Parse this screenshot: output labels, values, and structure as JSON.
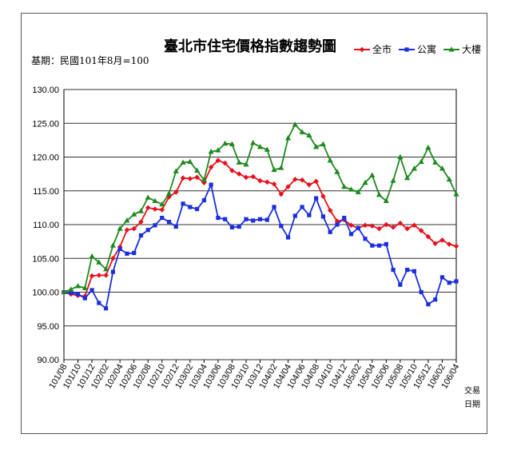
{
  "chart_data": {
    "type": "line",
    "title": "臺北市住宅價格指數趨勢圖",
    "subtitle": "基期：民國101年8月=100",
    "xlabel": "交易日期",
    "ylabel": "",
    "ylim": [
      90,
      130
    ],
    "yticks": [
      "90.00",
      "95.00",
      "100.00",
      "105.00",
      "110.00",
      "115.00",
      "120.00",
      "125.00",
      "130.00"
    ],
    "grid": true,
    "legend": "top-right",
    "x": [
      "101/08",
      "101/09",
      "101/10",
      "101/11",
      "101/12",
      "102/01",
      "102/02",
      "102/03",
      "102/04",
      "102/05",
      "102/06",
      "102/07",
      "102/08",
      "102/09",
      "102/10",
      "102/11",
      "102/12",
      "103/01",
      "103/02",
      "103/03",
      "103/04",
      "103/05",
      "103/06",
      "103/07",
      "103/08",
      "103/09",
      "103/10",
      "103/11",
      "103/12",
      "104/01",
      "104/02",
      "104/03",
      "104/04",
      "104/05",
      "104/06",
      "104/07",
      "104/08",
      "104/09",
      "104/10",
      "104/11",
      "104/12",
      "105/01",
      "105/02",
      "105/03",
      "105/04",
      "105/05",
      "105/06",
      "105/07",
      "105/08",
      "105/09",
      "105/10",
      "105/11",
      "105/12",
      "106/01",
      "106/02",
      "106/03",
      "106/04"
    ],
    "xticks": [
      "101/08",
      "101/10",
      "101/12",
      "102/02",
      "102/04",
      "102/06",
      "102/08",
      "102/10",
      "102/12",
      "103/02",
      "103/04",
      "103/06",
      "103/08",
      "103/10",
      "103/12",
      "104/02",
      "104/04",
      "104/06",
      "104/08",
      "104/10",
      "104/12",
      "105/02",
      "105/04",
      "105/06",
      "105/08",
      "105/10",
      "105/12",
      "106/02",
      "106/04"
    ],
    "series": [
      {
        "name": "全市",
        "color": "#e8101a",
        "marker": "diamond",
        "values": [
          100.0,
          99.7,
          99.5,
          99.4,
          102.4,
          102.5,
          102.5,
          105.0,
          106.7,
          109.2,
          109.4,
          110.4,
          112.5,
          112.3,
          112.2,
          114.1,
          114.8,
          116.9,
          116.8,
          117.0,
          116.2,
          118.5,
          119.5,
          119.1,
          118.0,
          117.5,
          117.0,
          117.1,
          116.5,
          116.3,
          116.0,
          114.5,
          115.6,
          116.7,
          116.6,
          115.9,
          116.4,
          114.2,
          112.1,
          110.5,
          110.7,
          109.9,
          109.5,
          109.9,
          109.8,
          109.4,
          110.0,
          109.6,
          110.2,
          109.4,
          109.9,
          109.1,
          108.2,
          107.2,
          107.7,
          107.1,
          106.8
        ]
      },
      {
        "name": "公寓",
        "color": "#1a2ee0",
        "marker": "square",
        "values": [
          100.0,
          99.9,
          99.7,
          99.1,
          100.3,
          98.4,
          97.6,
          103.0,
          106.4,
          105.7,
          105.8,
          108.4,
          109.2,
          109.9,
          111.0,
          110.4,
          109.7,
          113.1,
          112.6,
          112.3,
          113.6,
          115.9,
          111.0,
          110.8,
          109.6,
          109.7,
          110.8,
          110.6,
          110.8,
          110.7,
          112.6,
          109.8,
          108.1,
          111.3,
          112.6,
          111.4,
          113.9,
          111.2,
          108.9,
          110.0,
          111.0,
          108.6,
          109.5,
          107.9,
          106.9,
          106.9,
          107.1,
          103.3,
          101.1,
          103.3,
          103.1,
          100.0,
          98.2,
          98.9,
          102.2,
          101.4,
          101.6
        ]
      },
      {
        "name": "大樓",
        "color": "#1e8a1e",
        "marker": "triangle",
        "values": [
          100.0,
          100.4,
          100.9,
          100.6,
          105.3,
          104.4,
          103.4,
          106.9,
          109.4,
          110.6,
          111.5,
          112.0,
          114.0,
          113.5,
          113.0,
          114.6,
          117.9,
          119.2,
          119.3,
          118.0,
          116.6,
          120.8,
          121.0,
          122.0,
          121.9,
          119.2,
          118.9,
          122.1,
          121.5,
          121.1,
          118.1,
          118.4,
          122.8,
          124.8,
          123.7,
          123.2,
          121.5,
          121.9,
          119.5,
          117.8,
          115.6,
          115.2,
          114.8,
          116.2,
          117.3,
          114.4,
          113.5,
          116.5,
          120.0,
          116.9,
          118.3,
          119.3,
          121.4,
          119.2,
          118.3,
          116.7,
          114.5
        ]
      }
    ]
  }
}
